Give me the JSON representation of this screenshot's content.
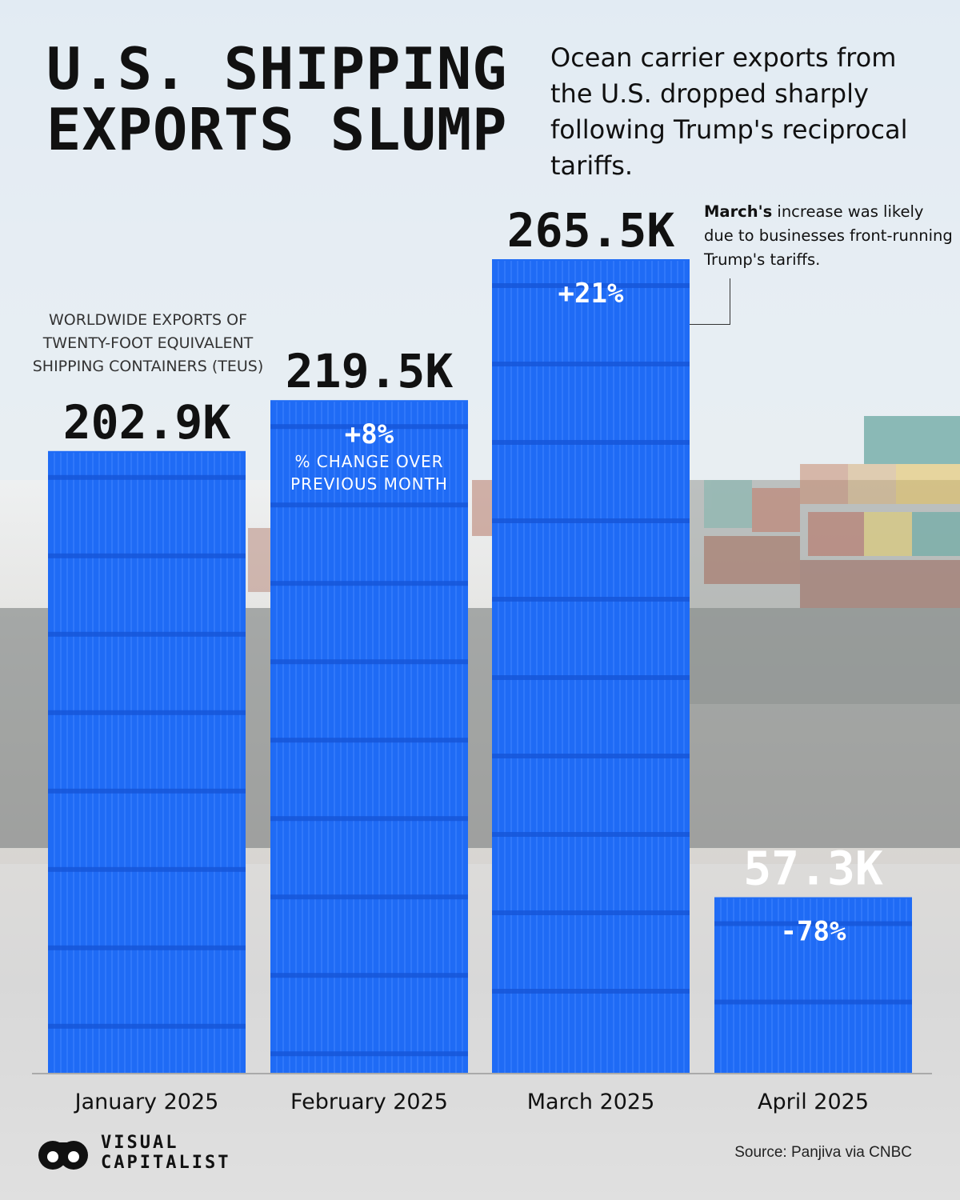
{
  "header": {
    "title_line1": "U.S. SHIPPING",
    "title_line2": "EXPORTS SLUMP",
    "subtitle": "Ocean carrier exports from the U.S. dropped sharply following Trump's reciprocal tariffs."
  },
  "axis_note": "WORLDWIDE EXPORTS OF TWENTY-FOOT EQUIVALENT SHIPPING CONTAINERS (TEUs)",
  "annotation": {
    "bold": "March's",
    "text": " increase was likely due to businesses front-running Trump's tariffs."
  },
  "change_label": "% CHANGE OVER PREVIOUS MONTH",
  "chart_data": {
    "type": "bar",
    "categories": [
      "January 2025",
      "February 2025",
      "March 2025",
      "April 2025"
    ],
    "values": [
      202.9,
      219.5,
      265.5,
      57.3
    ],
    "value_labels": [
      "202.9K",
      "219.5K",
      "265.5K",
      "57.3K"
    ],
    "change_labels": [
      "",
      "+8%",
      "+21%",
      "-78%"
    ],
    "unit": "K TEUs",
    "ylim": [
      0,
      265.5
    ],
    "colors": {
      "bar": "#1f6bf5",
      "bar_line": "#3f84ff",
      "bar_dark": "#1656d8"
    }
  },
  "footer": {
    "source": "Source: Panjiva via CNBC",
    "logo_line1": "VISUAL",
    "logo_line2": "CAPITALIST"
  }
}
